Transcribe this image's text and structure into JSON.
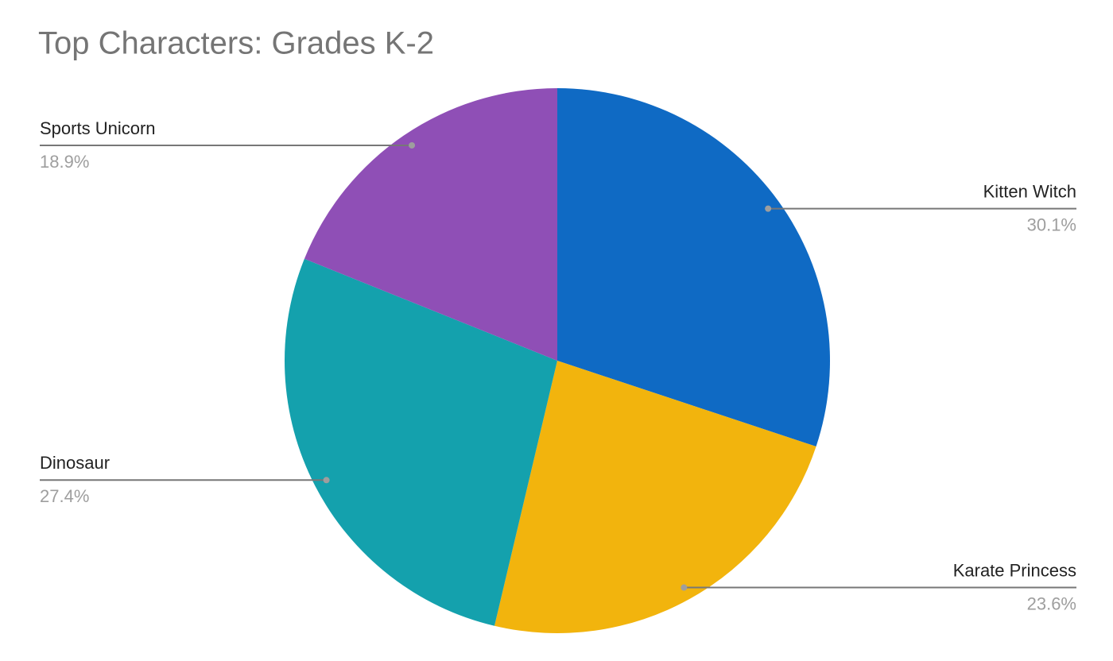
{
  "chart_data": {
    "type": "pie",
    "title": "Top Characters: Grades K-2",
    "categories": [
      "Kitten Witch",
      "Karate Princess",
      "Dinosaur",
      "Sports Unicorn"
    ],
    "values": [
      30.1,
      23.6,
      27.4,
      18.9
    ],
    "value_labels": [
      "30.1%",
      "23.6%",
      "27.4%",
      "18.9%"
    ],
    "colors": [
      "#0f6ac4",
      "#f2b40d",
      "#14a1ad",
      "#8f4fb6"
    ]
  }
}
